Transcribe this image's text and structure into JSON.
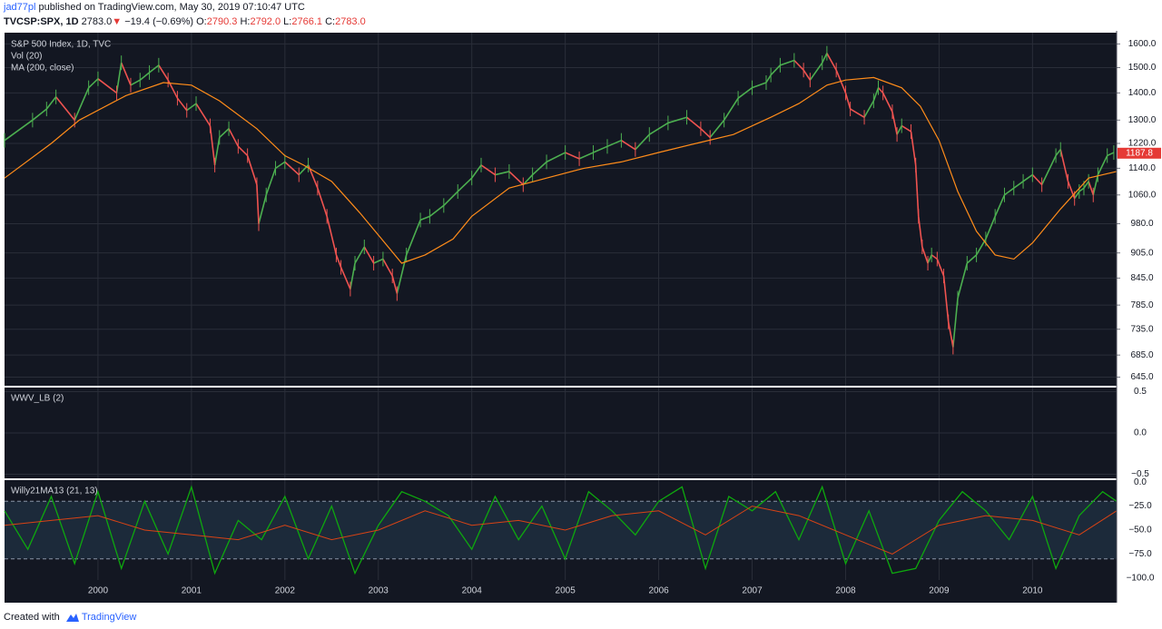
{
  "header": {
    "author": "jad77pl",
    "published_text": "published on TradingView.com, May 30, 2019 07:10:47 UTC",
    "symbol": "TVCSP:SPX, 1D",
    "last": "2783.0",
    "change": "−19.4 (−0.69%)",
    "o_label": "O:",
    "o_val": "2790.3",
    "h_label": "H:",
    "h_val": "2792.0",
    "l_label": "L:",
    "l_val": "2766.1",
    "c_label": "C:",
    "c_val": "2783.0",
    "down_arrow": "▼"
  },
  "footer": {
    "created_with": "Created with",
    "brand": "TradingView"
  },
  "colors": {
    "panel_bg": "#131722",
    "grid": "#2a2e39",
    "up": "#26a69a",
    "up_green": "#4caf50",
    "down": "#ef5350",
    "ma": "#ff8c1a",
    "price_tag": "#e53935",
    "willy_green": "#0ea80e",
    "willy_red": "#d84315",
    "band_fill": "#1c2a3a",
    "axis_text": "#d1d4dc"
  },
  "chart_data": [
    {
      "type": "line",
      "title": "S&P 500 Index, 1D, TVC",
      "legend": [
        "Vol (20)",
        "MA (200, close)"
      ],
      "x_ticks": [
        "2000",
        "2001",
        "2002",
        "2003",
        "2004",
        "2005",
        "2006",
        "2007",
        "2008",
        "2009",
        "2010"
      ],
      "x_range": [
        1999.0,
        2010.9
      ],
      "y_ticks": [
        "1600.0",
        "1500.0",
        "1400.0",
        "1300.0",
        "1220.0",
        "1140.0",
        "1060.0",
        "980.0",
        "905.0",
        "845.0",
        "785.0",
        "735.0",
        "685.0",
        "645.0"
      ],
      "y_tick_values": [
        1600,
        1500,
        1400,
        1300,
        1220,
        1140,
        1060,
        980,
        905,
        845,
        785,
        735,
        685,
        645
      ],
      "y_scale": "log",
      "y_range": [
        630,
        1650
      ],
      "last_price_label": "1187.8",
      "last_price": 1187.8,
      "series": [
        {
          "name": "S&P 500 Index",
          "x": [
            1999.0,
            1999.3,
            1999.45,
            1999.55,
            1999.75,
            1999.9,
            2000.0,
            2000.2,
            2000.25,
            2000.35,
            2000.45,
            2000.55,
            2000.65,
            2000.75,
            2000.85,
            2000.95,
            2001.05,
            2001.2,
            2001.25,
            2001.3,
            2001.4,
            2001.5,
            2001.6,
            2001.7,
            2001.72,
            2001.8,
            2001.9,
            2002.0,
            2002.15,
            2002.25,
            2002.35,
            2002.45,
            2002.55,
            2002.6,
            2002.7,
            2002.75,
            2002.85,
            2002.95,
            2003.05,
            2003.15,
            2003.2,
            2003.3,
            2003.45,
            2003.55,
            2003.7,
            2003.85,
            2004.0,
            2004.1,
            2004.25,
            2004.4,
            2004.55,
            2004.65,
            2004.8,
            2005.0,
            2005.15,
            2005.3,
            2005.45,
            2005.6,
            2005.75,
            2005.9,
            2006.1,
            2006.3,
            2006.45,
            2006.55,
            2006.7,
            2006.85,
            2007.0,
            2007.15,
            2007.2,
            2007.3,
            2007.45,
            2007.55,
            2007.62,
            2007.75,
            2007.8,
            2007.9,
            2008.0,
            2008.05,
            2008.2,
            2008.3,
            2008.35,
            2008.4,
            2008.5,
            2008.55,
            2008.6,
            2008.7,
            2008.75,
            2008.78,
            2008.82,
            2008.88,
            2008.92,
            2008.98,
            2009.05,
            2009.1,
            2009.15,
            2009.2,
            2009.3,
            2009.4,
            2009.5,
            2009.6,
            2009.7,
            2009.8,
            2009.9,
            2010.0,
            2010.1,
            2010.25,
            2010.3,
            2010.38,
            2010.45,
            2010.5,
            2010.55,
            2010.6,
            2010.65,
            2010.7,
            2010.8,
            2010.87
          ],
          "y": [
            1230,
            1300,
            1340,
            1385,
            1300,
            1420,
            1455,
            1400,
            1520,
            1430,
            1450,
            1480,
            1510,
            1450,
            1380,
            1335,
            1360,
            1280,
            1150,
            1240,
            1270,
            1210,
            1180,
            1090,
            980,
            1060,
            1140,
            1160,
            1120,
            1150,
            1080,
            1000,
            900,
            870,
            820,
            880,
            920,
            880,
            890,
            850,
            810,
            900,
            990,
            1000,
            1030,
            1070,
            1110,
            1150,
            1120,
            1130,
            1090,
            1120,
            1160,
            1190,
            1170,
            1190,
            1210,
            1230,
            1200,
            1250,
            1290,
            1310,
            1270,
            1240,
            1300,
            1380,
            1420,
            1440,
            1470,
            1510,
            1530,
            1490,
            1450,
            1520,
            1560,
            1490,
            1400,
            1340,
            1310,
            1370,
            1420,
            1400,
            1330,
            1250,
            1280,
            1260,
            1150,
            1000,
            920,
            880,
            900,
            890,
            850,
            750,
            700,
            800,
            880,
            900,
            940,
            1000,
            1060,
            1080,
            1100,
            1120,
            1090,
            1180,
            1200,
            1100,
            1050,
            1070,
            1080,
            1100,
            1060,
            1120,
            1180,
            1190
          ]
        },
        {
          "name": "MA (200, close)",
          "x": [
            1999.0,
            1999.5,
            1999.8,
            2000.3,
            2000.7,
            2001.0,
            2001.3,
            2001.7,
            2002.0,
            2002.2,
            2002.5,
            2002.8,
            2003.0,
            2003.25,
            2003.5,
            2003.8,
            2004.0,
            2004.4,
            2004.8,
            2005.2,
            2005.6,
            2006.0,
            2006.4,
            2006.8,
            2007.2,
            2007.5,
            2007.8,
            2008.0,
            2008.3,
            2008.6,
            2008.8,
            2009.0,
            2009.2,
            2009.4,
            2009.6,
            2009.8,
            2010.0,
            2010.3,
            2010.6,
            2010.9
          ],
          "y": [
            1110,
            1220,
            1300,
            1390,
            1440,
            1430,
            1370,
            1270,
            1180,
            1150,
            1100,
            1010,
            950,
            880,
            900,
            940,
            1000,
            1080,
            1110,
            1140,
            1160,
            1190,
            1220,
            1250,
            1310,
            1360,
            1430,
            1450,
            1460,
            1420,
            1350,
            1230,
            1070,
            960,
            900,
            890,
            930,
            1020,
            1110,
            1130
          ]
        }
      ]
    },
    {
      "type": "line",
      "title": "WWV_LB (2)",
      "y_ticks": [
        "0.5",
        "0.0",
        "−0.5"
      ],
      "y_tick_values": [
        0.5,
        0.0,
        -0.5
      ],
      "y_range": [
        -0.55,
        0.55
      ],
      "series": []
    },
    {
      "type": "line",
      "title": "Willy21MA13 (21, 13)",
      "y_ticks": [
        "0.0",
        "−25.0",
        "−50.0",
        "−75.0",
        "−100.0"
      ],
      "y_tick_values": [
        0,
        -25,
        -50,
        -75,
        -100
      ],
      "y_range": [
        -102,
        2
      ],
      "bands": [
        -20,
        -80
      ],
      "series": [
        {
          "name": "Willy21",
          "x": [
            1999.0,
            1999.25,
            1999.5,
            1999.75,
            2000.0,
            2000.25,
            2000.5,
            2000.75,
            2001.0,
            2001.25,
            2001.5,
            2001.75,
            2002.0,
            2002.25,
            2002.5,
            2002.75,
            2003.0,
            2003.25,
            2003.5,
            2003.75,
            2004.0,
            2004.25,
            2004.5,
            2004.75,
            2005.0,
            2005.25,
            2005.5,
            2005.75,
            2006.0,
            2006.25,
            2006.5,
            2006.75,
            2007.0,
            2007.25,
            2007.5,
            2007.75,
            2008.0,
            2008.25,
            2008.5,
            2008.75,
            2009.0,
            2009.25,
            2009.5,
            2009.75,
            2010.0,
            2010.25,
            2010.5,
            2010.75,
            2010.9
          ],
          "y": [
            -30,
            -70,
            -15,
            -85,
            -10,
            -90,
            -20,
            -75,
            -5,
            -95,
            -40,
            -60,
            -15,
            -80,
            -25,
            -95,
            -45,
            -10,
            -20,
            -35,
            -70,
            -15,
            -60,
            -25,
            -80,
            -10,
            -30,
            -55,
            -20,
            -5,
            -90,
            -15,
            -30,
            -10,
            -60,
            -5,
            -85,
            -30,
            -95,
            -90,
            -40,
            -10,
            -30,
            -60,
            -15,
            -90,
            -35,
            -10,
            -20
          ]
        },
        {
          "name": "MA13",
          "x": [
            1999.0,
            1999.5,
            2000.0,
            2000.5,
            2001.0,
            2001.5,
            2002.0,
            2002.5,
            2003.0,
            2003.5,
            2004.0,
            2004.5,
            2005.0,
            2005.5,
            2006.0,
            2006.5,
            2007.0,
            2007.5,
            2008.0,
            2008.5,
            2009.0,
            2009.5,
            2010.0,
            2010.5,
            2010.9
          ],
          "y": [
            -45,
            -40,
            -35,
            -50,
            -55,
            -60,
            -45,
            -60,
            -50,
            -30,
            -45,
            -40,
            -50,
            -35,
            -30,
            -55,
            -25,
            -35,
            -55,
            -75,
            -45,
            -35,
            -40,
            -55,
            -30
          ]
        }
      ]
    }
  ]
}
